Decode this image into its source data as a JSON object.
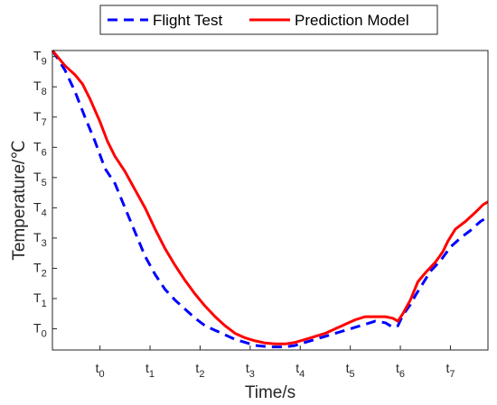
{
  "chart_data": {
    "type": "line",
    "xlabel": "Time/s",
    "ylabel": "Temperature/℃",
    "x_ticks": [
      {
        "base": "t",
        "sub": "0",
        "value": 0
      },
      {
        "base": "t",
        "sub": "1",
        "value": 1
      },
      {
        "base": "t",
        "sub": "2",
        "value": 2
      },
      {
        "base": "t",
        "sub": "3",
        "value": 3
      },
      {
        "base": "t",
        "sub": "4",
        "value": 4
      },
      {
        "base": "t",
        "sub": "5",
        "value": 5
      },
      {
        "base": "t",
        "sub": "6",
        "value": 6
      },
      {
        "base": "t",
        "sub": "7",
        "value": 7
      }
    ],
    "y_ticks": [
      {
        "base": "T",
        "sub": "0",
        "value": 0
      },
      {
        "base": "T",
        "sub": "1",
        "value": 1
      },
      {
        "base": "T",
        "sub": "2",
        "value": 2
      },
      {
        "base": "T",
        "sub": "3",
        "value": 3
      },
      {
        "base": "T",
        "sub": "4",
        "value": 4
      },
      {
        "base": "T",
        "sub": "5",
        "value": 5
      },
      {
        "base": "T",
        "sub": "6",
        "value": 6
      },
      {
        "base": "T",
        "sub": "7",
        "value": 7
      },
      {
        "base": "T",
        "sub": "8",
        "value": 8
      },
      {
        "base": "T",
        "sub": "9",
        "value": 9
      }
    ],
    "xlim": [
      -0.95,
      7.75
    ],
    "ylim": [
      -0.7,
      9.2
    ],
    "grid": false,
    "legend_placement": "top-center",
    "series": [
      {
        "name": "Flight Test",
        "color": "#0000ff",
        "style": "dashed",
        "points": [
          [
            -0.95,
            9.2
          ],
          [
            -0.85,
            8.95
          ],
          [
            -0.7,
            8.55
          ],
          [
            -0.5,
            7.85
          ],
          [
            -0.3,
            7.0
          ],
          [
            -0.1,
            6.2
          ],
          [
            0.1,
            5.3
          ],
          [
            0.3,
            4.8
          ],
          [
            0.5,
            4.0
          ],
          [
            0.7,
            3.2
          ],
          [
            0.9,
            2.4
          ],
          [
            1.1,
            1.8
          ],
          [
            1.3,
            1.3
          ],
          [
            1.5,
            0.95
          ],
          [
            1.7,
            0.65
          ],
          [
            1.9,
            0.35
          ],
          [
            2.1,
            0.1
          ],
          [
            2.3,
            -0.05
          ],
          [
            2.5,
            -0.2
          ],
          [
            2.7,
            -0.35
          ],
          [
            2.9,
            -0.45
          ],
          [
            3.1,
            -0.55
          ],
          [
            3.4,
            -0.6
          ],
          [
            3.7,
            -0.6
          ],
          [
            3.9,
            -0.55
          ],
          [
            4.1,
            -0.45
          ],
          [
            4.3,
            -0.35
          ],
          [
            4.5,
            -0.25
          ],
          [
            4.7,
            -0.15
          ],
          [
            4.9,
            -0.05
          ],
          [
            5.1,
            0.05
          ],
          [
            5.3,
            0.15
          ],
          [
            5.5,
            0.25
          ],
          [
            5.7,
            0.2
          ],
          [
            5.85,
            0.05
          ],
          [
            5.95,
            0.1
          ],
          [
            6.05,
            0.45
          ],
          [
            6.2,
            0.8
          ],
          [
            6.3,
            1.1
          ],
          [
            6.45,
            1.5
          ],
          [
            6.6,
            1.9
          ],
          [
            6.8,
            2.25
          ],
          [
            7.0,
            2.7
          ],
          [
            7.2,
            3.0
          ],
          [
            7.4,
            3.25
          ],
          [
            7.6,
            3.55
          ],
          [
            7.75,
            3.7
          ]
        ]
      },
      {
        "name": "Prediction Model",
        "color": "#ff0000",
        "style": "solid",
        "points": [
          [
            -0.95,
            9.2
          ],
          [
            -0.85,
            9.0
          ],
          [
            -0.7,
            8.7
          ],
          [
            -0.5,
            8.4
          ],
          [
            -0.35,
            8.1
          ],
          [
            -0.2,
            7.6
          ],
          [
            0.0,
            6.85
          ],
          [
            0.15,
            6.2
          ],
          [
            0.3,
            5.7
          ],
          [
            0.5,
            5.2
          ],
          [
            0.7,
            4.6
          ],
          [
            0.9,
            4.0
          ],
          [
            1.1,
            3.3
          ],
          [
            1.3,
            2.65
          ],
          [
            1.5,
            2.1
          ],
          [
            1.7,
            1.6
          ],
          [
            1.9,
            1.15
          ],
          [
            2.1,
            0.75
          ],
          [
            2.3,
            0.4
          ],
          [
            2.5,
            0.1
          ],
          [
            2.7,
            -0.15
          ],
          [
            2.9,
            -0.3
          ],
          [
            3.1,
            -0.4
          ],
          [
            3.3,
            -0.47
          ],
          [
            3.5,
            -0.5
          ],
          [
            3.7,
            -0.5
          ],
          [
            3.9,
            -0.45
          ],
          [
            4.1,
            -0.35
          ],
          [
            4.3,
            -0.25
          ],
          [
            4.5,
            -0.15
          ],
          [
            4.7,
            0.0
          ],
          [
            4.9,
            0.15
          ],
          [
            5.1,
            0.3
          ],
          [
            5.3,
            0.4
          ],
          [
            5.5,
            0.4
          ],
          [
            5.7,
            0.4
          ],
          [
            5.85,
            0.35
          ],
          [
            5.95,
            0.25
          ],
          [
            6.05,
            0.5
          ],
          [
            6.2,
            0.95
          ],
          [
            6.35,
            1.55
          ],
          [
            6.5,
            1.85
          ],
          [
            6.7,
            2.2
          ],
          [
            6.85,
            2.55
          ],
          [
            6.95,
            2.9
          ],
          [
            7.1,
            3.3
          ],
          [
            7.3,
            3.55
          ],
          [
            7.5,
            3.85
          ],
          [
            7.65,
            4.1
          ],
          [
            7.75,
            4.2
          ]
        ]
      }
    ]
  }
}
